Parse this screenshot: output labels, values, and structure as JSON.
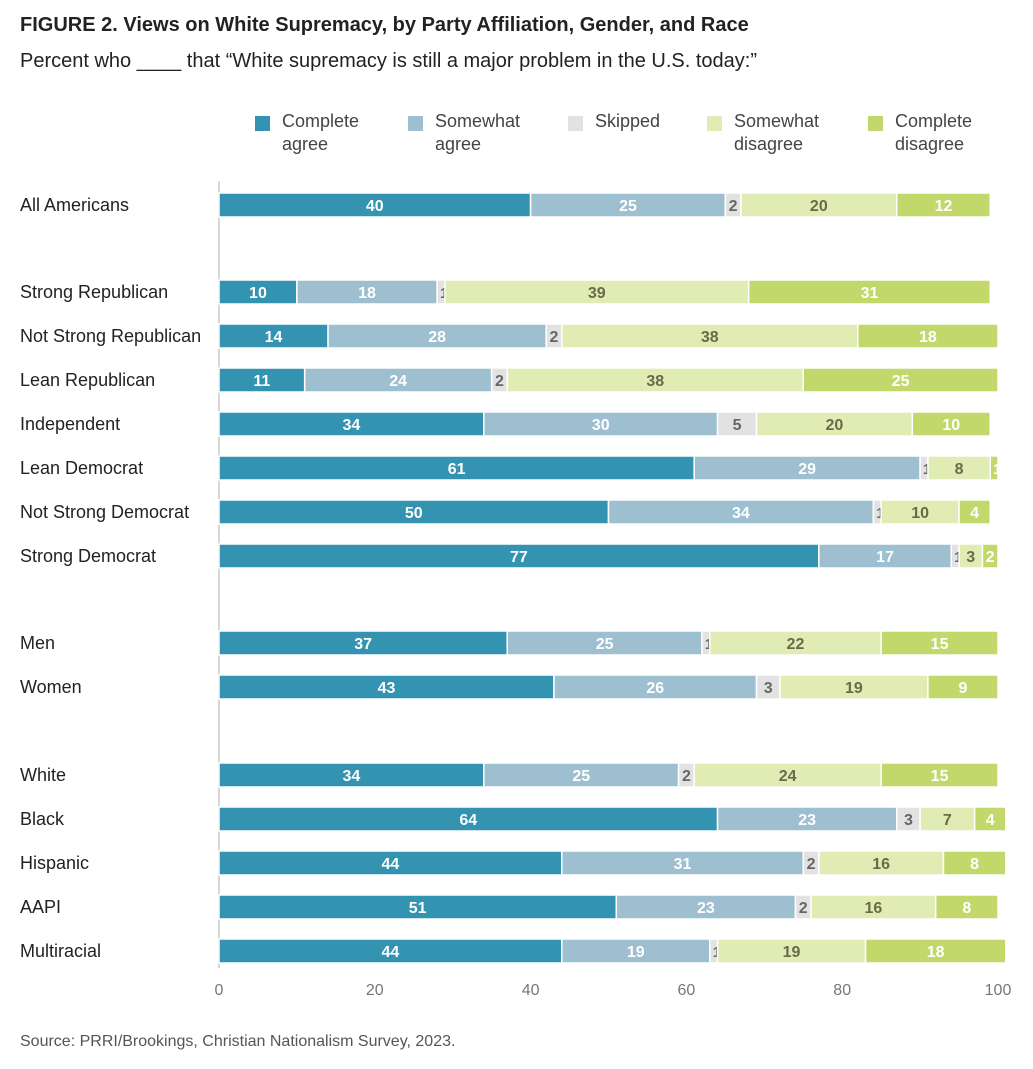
{
  "title": "FIGURE 2.  Views on White Supremacy, by Party Affiliation, Gender, and Race",
  "subtitle": "Percent who ____ that “White supremacy is still a major problem in the U.S. today:”",
  "source": "Source: PRRI/Brookings, Christian Nationalism Survey, 2023.",
  "legend": [
    {
      "label": "Complete\nagree",
      "color": "#3393b0"
    },
    {
      "label": "Somewhat\nagree",
      "color": "#9dbfd0"
    },
    {
      "label": "Skipped",
      "color": "#e2e2e2"
    },
    {
      "label": "Somewhat\ndisagree",
      "color": "#e0ecb4"
    },
    {
      "label": "Complete\ndisagree",
      "color": "#c2d86a"
    }
  ],
  "chart_data": {
    "type": "bar",
    "orientation": "horizontal",
    "stacked": true,
    "title": "FIGURE 2.  Views on White Supremacy, by Party Affiliation, Gender, and Race",
    "xlim": [
      0,
      100
    ],
    "xticks": [
      0,
      20,
      40,
      60,
      80,
      100
    ],
    "legend_position": "top",
    "grid": false,
    "categories": [
      "All Americans",
      "Strong Republican",
      "Not Strong Republican",
      "Lean Republican",
      "Independent",
      "Lean Democrat",
      "Not Strong Democrat",
      "Strong Democrat",
      "Men",
      "Women",
      "White",
      "Black",
      "Hispanic",
      "AAPI",
      "Multiracial"
    ],
    "groups": [
      [
        0
      ],
      [
        1,
        2,
        3,
        4,
        5,
        6,
        7
      ],
      [
        8,
        9
      ],
      [
        10,
        11,
        12,
        13,
        14
      ]
    ],
    "series": [
      {
        "name": "Complete agree",
        "color": "#3393b0",
        "label_color": "#ffffff",
        "values": [
          40,
          10,
          14,
          11,
          34,
          61,
          50,
          77,
          37,
          43,
          34,
          64,
          44,
          51,
          44
        ]
      },
      {
        "name": "Somewhat agree",
        "color": "#9dbfd0",
        "label_color": "#ffffff",
        "values": [
          25,
          18,
          28,
          24,
          30,
          29,
          34,
          17,
          25,
          26,
          25,
          23,
          31,
          23,
          19
        ]
      },
      {
        "name": "Skipped",
        "color": "#e2e2e2",
        "label_color": "#666666",
        "values": [
          2,
          1,
          2,
          2,
          5,
          1,
          1,
          1,
          1,
          3,
          2,
          3,
          2,
          2,
          1
        ]
      },
      {
        "name": "Somewhat disagree",
        "color": "#e0ecb4",
        "label_color": "#6a6a4a",
        "values": [
          20,
          39,
          38,
          38,
          20,
          8,
          10,
          3,
          22,
          19,
          24,
          7,
          16,
          16,
          19
        ]
      },
      {
        "name": "Complete disagree",
        "color": "#c2d86a",
        "label_color": "#ffffff",
        "values": [
          12,
          31,
          18,
          25,
          10,
          1,
          4,
          2,
          15,
          9,
          15,
          4,
          8,
          8,
          18
        ]
      }
    ]
  }
}
